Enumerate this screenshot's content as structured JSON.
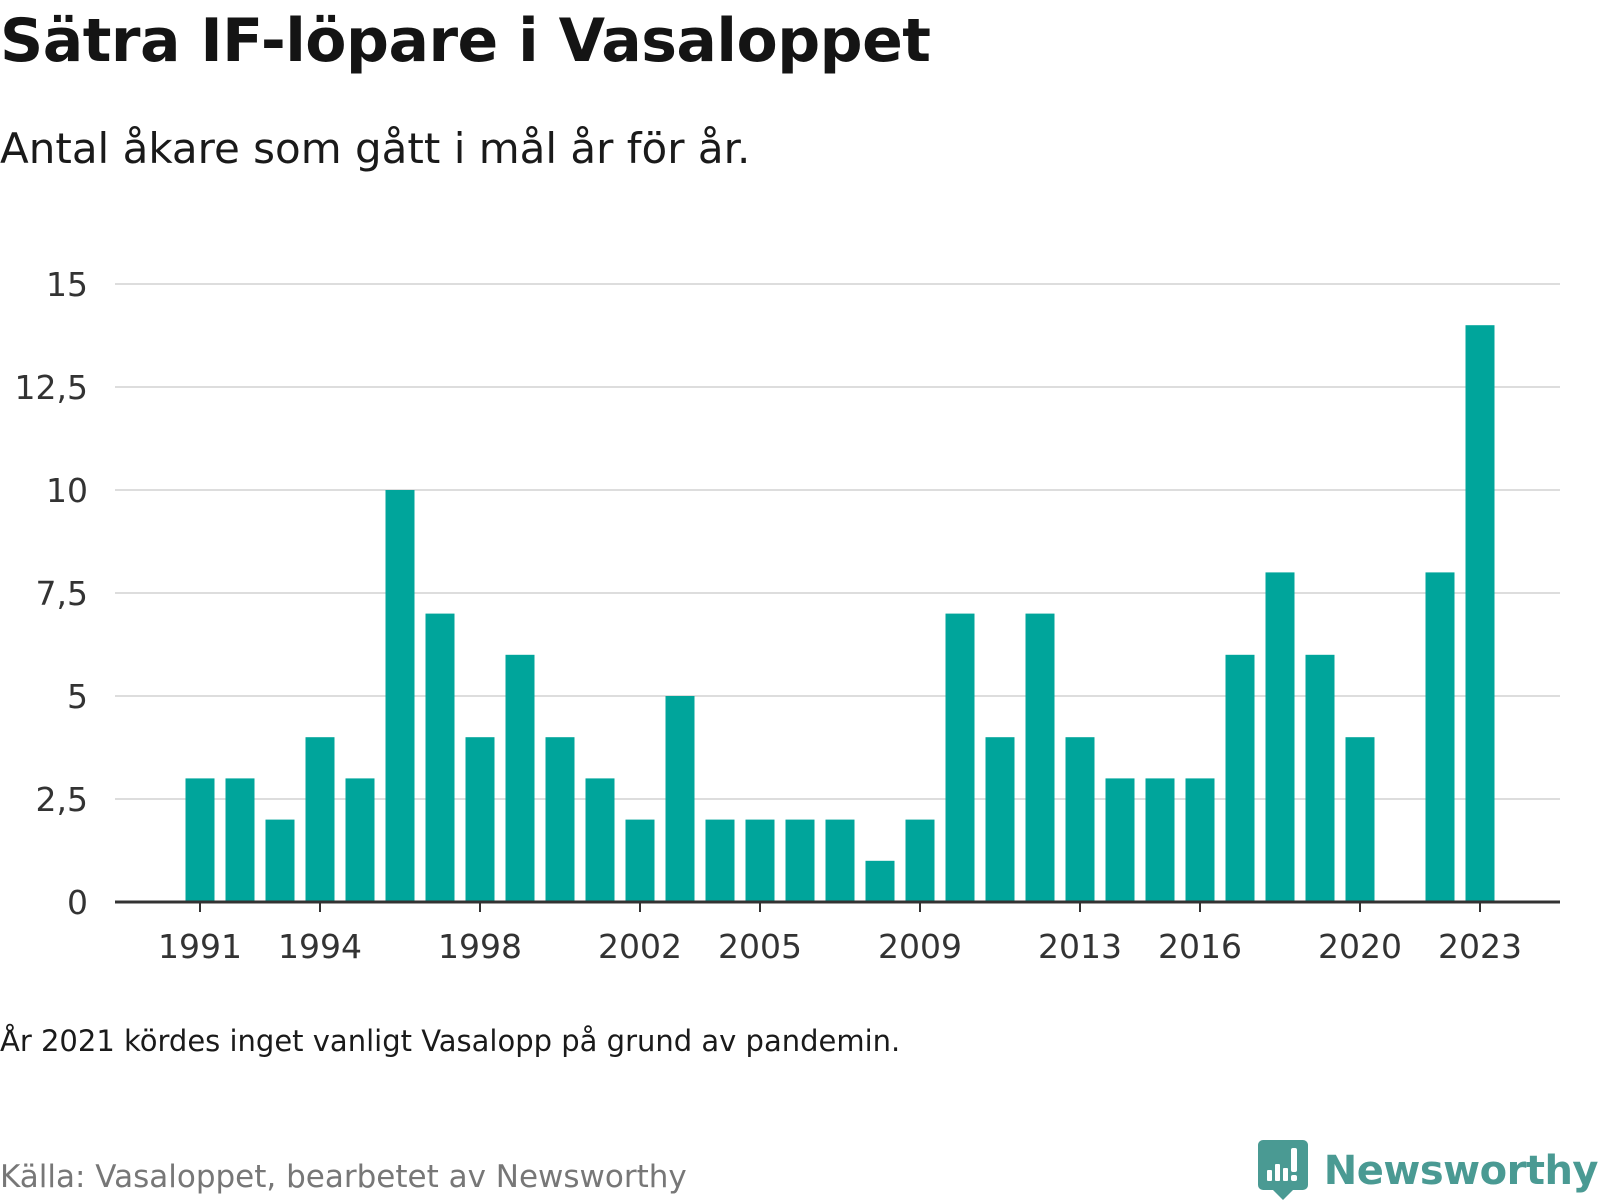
{
  "title": "Sätra IF-löpare i Vasaloppet",
  "subtitle": "Antal åkare som gått i mål år för år.",
  "note": "År 2021 kördes inget vanligt Vasalopp på grund av pandemin.",
  "source": "Källa: Vasaloppet, bearbetet av Newsworthy",
  "logo": {
    "text": "Newsworthy",
    "icon": "newsworthy-logo-icon"
  },
  "colors": {
    "bar": "#00a59b",
    "grid": "#dddddd",
    "axis": "#333333",
    "logo": "#4a9a93"
  },
  "chart_data": {
    "type": "bar",
    "categories": [
      "1991",
      "1992",
      "1993",
      "1994",
      "1995",
      "1996",
      "1997",
      "1998",
      "1999",
      "2000",
      "2001",
      "2002",
      "2003",
      "2004",
      "2005",
      "2006",
      "2007",
      "2008",
      "2009",
      "2010",
      "2011",
      "2012",
      "2013",
      "2014",
      "2015",
      "2016",
      "2017",
      "2018",
      "2019",
      "2020",
      "2021",
      "2022",
      "2023"
    ],
    "values": [
      3,
      3,
      2,
      4,
      3,
      10,
      7,
      4,
      6,
      4,
      3,
      2,
      5,
      2,
      2,
      2,
      2,
      1,
      2,
      7,
      4,
      7,
      4,
      3,
      3,
      3,
      6,
      8,
      6,
      4,
      null,
      8,
      14
    ],
    "x_tick_labels": [
      "1991",
      "1994",
      "1998",
      "2002",
      "2005",
      "2009",
      "2013",
      "2016",
      "2020",
      "2023"
    ],
    "y_ticks": [
      0,
      2.5,
      5,
      7.5,
      10,
      12.5,
      15
    ],
    "y_tick_labels": [
      "0",
      "2,5",
      "5",
      "7,5",
      "10",
      "12,5",
      "15"
    ],
    "ylim": [
      0,
      15
    ],
    "xlabel": "",
    "ylabel": "",
    "grid": true
  }
}
